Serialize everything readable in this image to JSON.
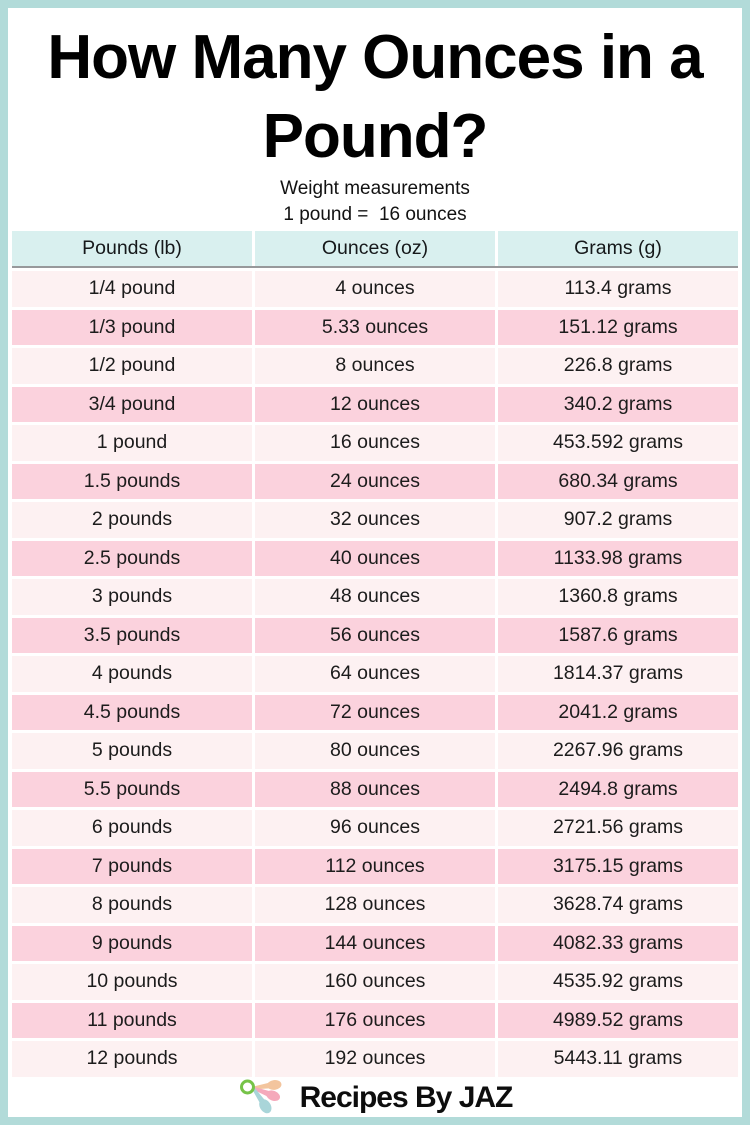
{
  "header": {
    "title_lines": [
      "How Many Ounces in a",
      "Pound?"
    ],
    "subtitle_line1": "Weight measurements",
    "subtitle_line2": "1 pound =  16 ounces"
  },
  "chart_data": {
    "type": "table",
    "title": "How Many Ounces in a Pound?",
    "subtitle": [
      "Weight measurements",
      "1 pound = 16 ounces"
    ],
    "columns": [
      "Pounds (lb)",
      "Ounces (oz)",
      "Grams (g)"
    ],
    "rows": [
      [
        "1/4 pound",
        "4 ounces",
        "113.4 grams"
      ],
      [
        "1/3 pound",
        "5.33 ounces",
        "151.12 grams"
      ],
      [
        "1/2 pound",
        "8 ounces",
        "226.8 grams"
      ],
      [
        "3/4 pound",
        "12 ounces",
        "340.2 grams"
      ],
      [
        "1 pound",
        "16 ounces",
        "453.592 grams"
      ],
      [
        "1.5 pounds",
        "24 ounces",
        "680.34 grams"
      ],
      [
        "2 pounds",
        "32 ounces",
        "907.2 grams"
      ],
      [
        "2.5 pounds",
        "40 ounces",
        "1133.98 grams"
      ],
      [
        "3 pounds",
        "48 ounces",
        "1360.8 grams"
      ],
      [
        "3.5 pounds",
        "56 ounces",
        "1587.6 grams"
      ],
      [
        "4 pounds",
        "64 ounces",
        "1814.37 grams"
      ],
      [
        "4.5 pounds",
        "72 ounces",
        "2041.2 grams"
      ],
      [
        "5 pounds",
        "80 ounces",
        "2267.96 grams"
      ],
      [
        "5.5 pounds",
        "88 ounces",
        "2494.8 grams"
      ],
      [
        "6 pounds",
        "96 ounces",
        "2721.56 grams"
      ],
      [
        "7 pounds",
        "112 ounces",
        "3175.15 grams"
      ],
      [
        "8 pounds",
        "128 ounces",
        "3628.74 grams"
      ],
      [
        "9 pounds",
        "144 ounces",
        "4082.33 grams"
      ],
      [
        "10 pounds",
        "160 ounces",
        "4535.92 grams"
      ],
      [
        "11 pounds",
        "176 ounces",
        "4989.52 grams"
      ],
      [
        "12 pounds",
        "192 ounces",
        "5443.11 grams"
      ]
    ]
  },
  "footer": {
    "brand": "Recipes By JAZ",
    "logo_icon": "measuring-spoons-icon"
  },
  "colors": {
    "border_teal": "#b2dbd9",
    "header_cyan": "#d9f0ef",
    "row_light_pink": "#fdf1f2",
    "row_dark_pink": "#fbd2dd",
    "header_divider_gray": "#97999b",
    "footer_divider_pink": "#f3aabc",
    "logo_green": "#76c348",
    "logo_peach": "#f3c59e",
    "logo_pink": "#f5a9bb",
    "logo_blue": "#a9d5d9",
    "title_black": "#000000"
  }
}
